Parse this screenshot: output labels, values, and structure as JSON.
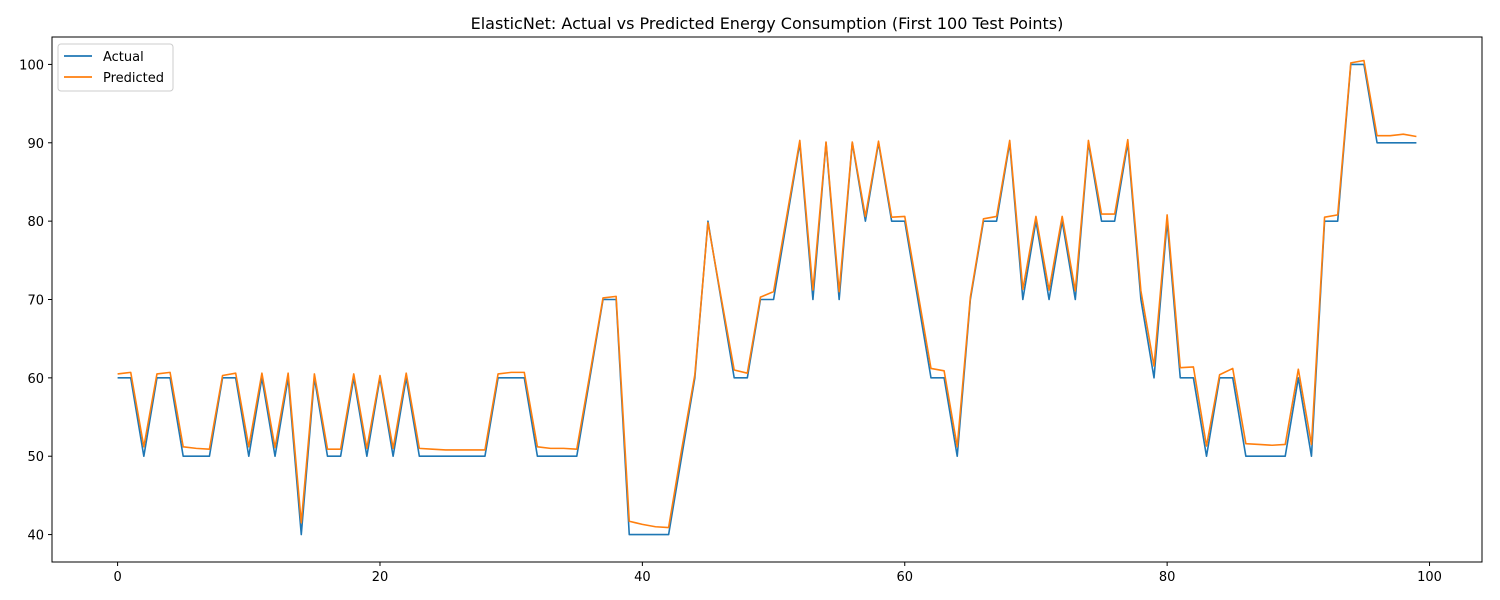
{
  "chart_data": {
    "type": "line",
    "title": "ElasticNet: Actual vs Predicted Energy Consumption (First 100 Test Points)",
    "xlabel": "",
    "ylabel": "",
    "xlim": [
      -5,
      104
    ],
    "ylim": [
      36.5,
      103.5
    ],
    "xticks": [
      0,
      20,
      40,
      60,
      80,
      100
    ],
    "yticks": [
      40,
      50,
      60,
      70,
      80,
      90,
      100
    ],
    "grid": false,
    "legend_position": "top-left",
    "x": [
      0,
      1,
      2,
      3,
      4,
      5,
      6,
      7,
      8,
      9,
      10,
      11,
      12,
      13,
      14,
      15,
      16,
      17,
      18,
      19,
      20,
      21,
      22,
      23,
      24,
      25,
      26,
      27,
      28,
      29,
      30,
      31,
      32,
      33,
      34,
      35,
      36,
      37,
      38,
      39,
      40,
      41,
      42,
      43,
      44,
      45,
      46,
      47,
      48,
      49,
      50,
      51,
      52,
      53,
      54,
      55,
      56,
      57,
      58,
      59,
      60,
      61,
      62,
      63,
      64,
      65,
      66,
      67,
      68,
      69,
      70,
      71,
      72,
      73,
      74,
      75,
      76,
      77,
      78,
      79,
      80,
      81,
      82,
      83,
      84,
      85,
      86,
      87,
      88,
      89,
      90,
      91,
      92,
      93,
      94,
      95,
      96,
      97,
      98,
      99
    ],
    "series": [
      {
        "name": "Actual",
        "color": "#1f77b4",
        "values": [
          60,
          60,
          50,
          60,
          60,
          50,
          50,
          50,
          60,
          60,
          50,
          60,
          50,
          60,
          40,
          60,
          50,
          50,
          60,
          50,
          60,
          50,
          60,
          50,
          50,
          50,
          50,
          50,
          50,
          60,
          60,
          60,
          50,
          50,
          50,
          50,
          60,
          70,
          70,
          40,
          40,
          40,
          40,
          50,
          60,
          80,
          70,
          60,
          60,
          70,
          70,
          80,
          90,
          70,
          90,
          70,
          90,
          80,
          90,
          80,
          80,
          70,
          60,
          60,
          50,
          70,
          80,
          80,
          90,
          70,
          80,
          70,
          80,
          70,
          90,
          80,
          80,
          90,
          70,
          60,
          80,
          60,
          60,
          50,
          60,
          60,
          50,
          50,
          50,
          50,
          60,
          50,
          80,
          80,
          100,
          100,
          90,
          90,
          90,
          90
        ]
      },
      {
        "name": "Predicted",
        "color": "#ff7f0e",
        "values": [
          60.5,
          60.7,
          51.2,
          60.5,
          60.7,
          51.2,
          51.0,
          50.9,
          60.3,
          60.6,
          51.2,
          60.6,
          51.1,
          60.6,
          41.5,
          60.5,
          50.9,
          50.9,
          60.5,
          51.0,
          60.3,
          51.0,
          60.6,
          51.0,
          50.9,
          50.8,
          50.8,
          50.8,
          50.8,
          60.5,
          60.7,
          60.7,
          51.2,
          51.0,
          51.0,
          50.9,
          60.5,
          70.2,
          70.4,
          41.7,
          41.3,
          41.0,
          40.9,
          50.9,
          60.4,
          79.8,
          70.3,
          61.0,
          60.6,
          70.3,
          71.0,
          80.6,
          90.3,
          71.2,
          90.1,
          71.0,
          90.1,
          80.6,
          90.2,
          80.5,
          80.6,
          70.9,
          61.2,
          60.9,
          51.2,
          70.3,
          80.3,
          80.6,
          90.3,
          71.3,
          80.6,
          71.2,
          80.6,
          71.1,
          90.3,
          80.9,
          80.9,
          90.4,
          71.1,
          61.5,
          80.8,
          61.3,
          61.4,
          51.3,
          60.4,
          61.2,
          51.6,
          51.5,
          51.4,
          51.5,
          61.1,
          51.5,
          80.5,
          80.8,
          100.2,
          100.5,
          90.9,
          90.9,
          91.1,
          90.8
        ]
      }
    ]
  }
}
